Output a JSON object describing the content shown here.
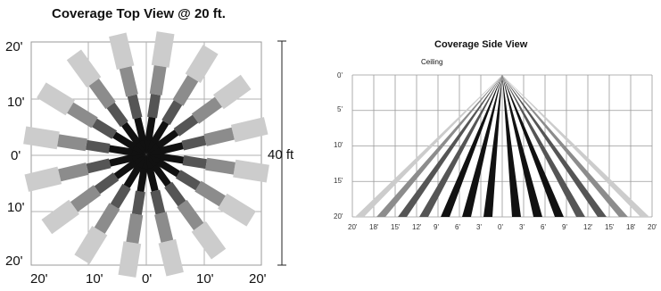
{
  "top_view": {
    "title": "Coverage Top View @ 20 ft.",
    "y_ticks": [
      "20'",
      "10'",
      "0'",
      "10'",
      "20'"
    ],
    "x_ticks": [
      "20'",
      "10'",
      "0'",
      "10'",
      "20'"
    ],
    "dimension_label": "40 ft"
  },
  "side_view": {
    "title": "Coverage Side View",
    "ceiling_label": "Ceiling",
    "y_ticks": [
      "0'",
      "5'",
      "10'",
      "15'",
      "20'"
    ],
    "x_ticks": [
      "20'",
      "18'",
      "15'",
      "12'",
      "9'",
      "6'",
      "3'",
      "0'",
      "3'",
      "6'",
      "9'",
      "12'",
      "15'",
      "18'",
      "20'"
    ]
  },
  "colors": {
    "light_zone": "#cccccc",
    "mid_zone": "#8c8c8c",
    "dark_zone": "#555555",
    "inner_zone": "#111111",
    "grid": "#9a9a9a"
  }
}
